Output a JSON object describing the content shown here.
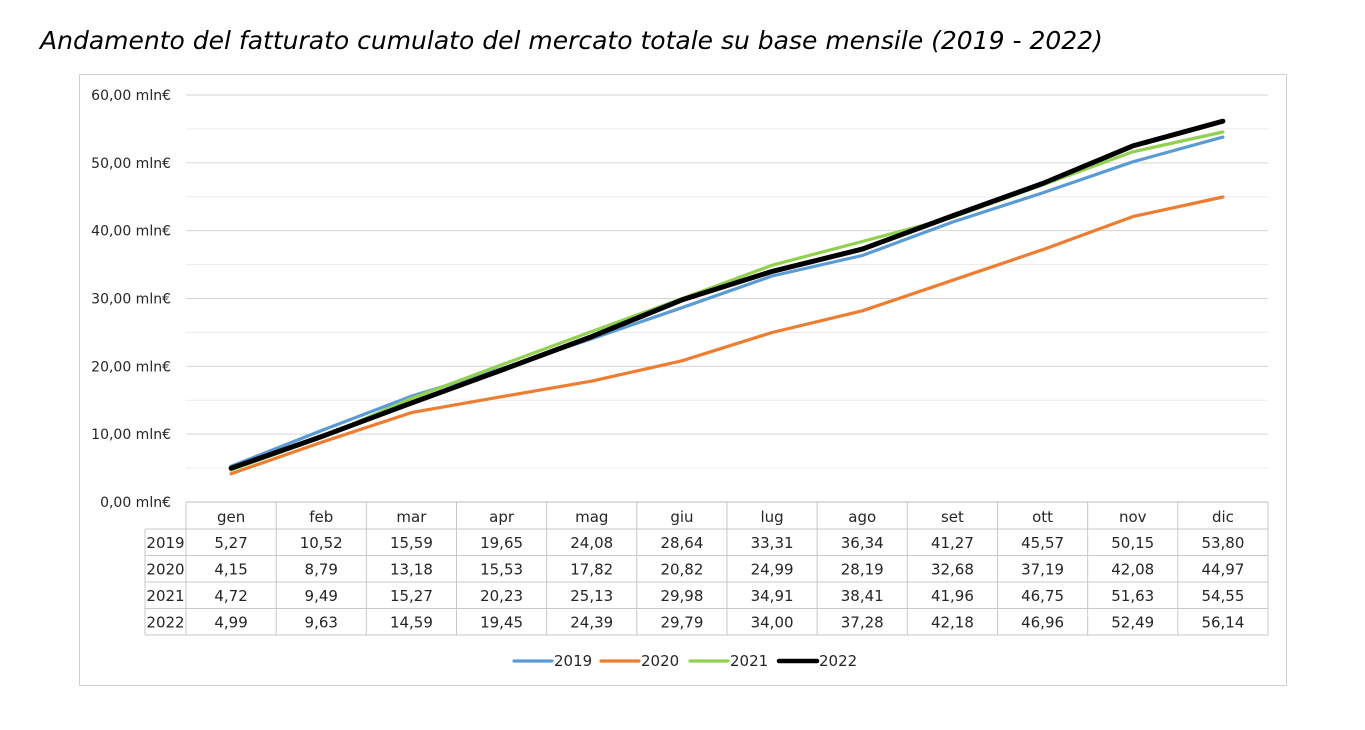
{
  "title": "Andamento del fatturato cumulato del mercato totale su base mensile (2019 - 2022)",
  "chart_data": {
    "type": "line",
    "title": "Andamento del fatturato cumulato del mercato totale su base mensile (2019 - 2022)",
    "categories": [
      "gen",
      "feb",
      "mar",
      "apr",
      "mag",
      "giu",
      "lug",
      "ago",
      "set",
      "ott",
      "nov",
      "dic"
    ],
    "ylim": [
      0,
      60
    ],
    "y_ticks": [
      0,
      10,
      20,
      30,
      40,
      50,
      60
    ],
    "y_tick_labels": [
      "0,00 mln€",
      "10,00 mln€",
      "20,00 mln€",
      "30,00 mln€",
      "40,00 mln€",
      "50,00 mln€",
      "60,00 mln€"
    ],
    "grid": true,
    "legend_position": "bottom",
    "data_table": true,
    "series": [
      {
        "name": "2019",
        "color": "#5b9bd5",
        "values": [
          5.27,
          10.52,
          15.59,
          19.65,
          24.08,
          28.64,
          33.31,
          36.34,
          41.27,
          45.57,
          50.15,
          53.8
        ],
        "labels": [
          "5,27",
          "10,52",
          "15,59",
          "19,65",
          "24,08",
          "28,64",
          "33,31",
          "36,34",
          "41,27",
          "45,57",
          "50,15",
          "53,80"
        ]
      },
      {
        "name": "2020",
        "color": "#ed7d31",
        "values": [
          4.15,
          8.79,
          13.18,
          15.53,
          17.82,
          20.82,
          24.99,
          28.19,
          32.68,
          37.19,
          42.08,
          44.97
        ],
        "labels": [
          "4,15",
          "8,79",
          "13,18",
          "15,53",
          "17,82",
          "20,82",
          "24,99",
          "28,19",
          "32,68",
          "37,19",
          "42,08",
          "44,97"
        ]
      },
      {
        "name": "2021",
        "color": "#92d050",
        "values": [
          4.72,
          9.49,
          15.27,
          20.23,
          25.13,
          29.98,
          34.91,
          38.41,
          41.96,
          46.75,
          51.63,
          54.55
        ],
        "labels": [
          "4,72",
          "9,49",
          "15,27",
          "20,23",
          "25,13",
          "29,98",
          "34,91",
          "38,41",
          "41,96",
          "46,75",
          "51,63",
          "54,55"
        ]
      },
      {
        "name": "2022",
        "color": "#000000",
        "values": [
          4.99,
          9.63,
          14.59,
          19.45,
          24.39,
          29.79,
          34.0,
          37.28,
          42.18,
          46.96,
          52.49,
          56.14
        ],
        "labels": [
          "4,99",
          "9,63",
          "14,59",
          "19,45",
          "24,39",
          "29,79",
          "34,00",
          "37,28",
          "42,18",
          "46,96",
          "52,49",
          "56,14"
        ]
      }
    ]
  }
}
